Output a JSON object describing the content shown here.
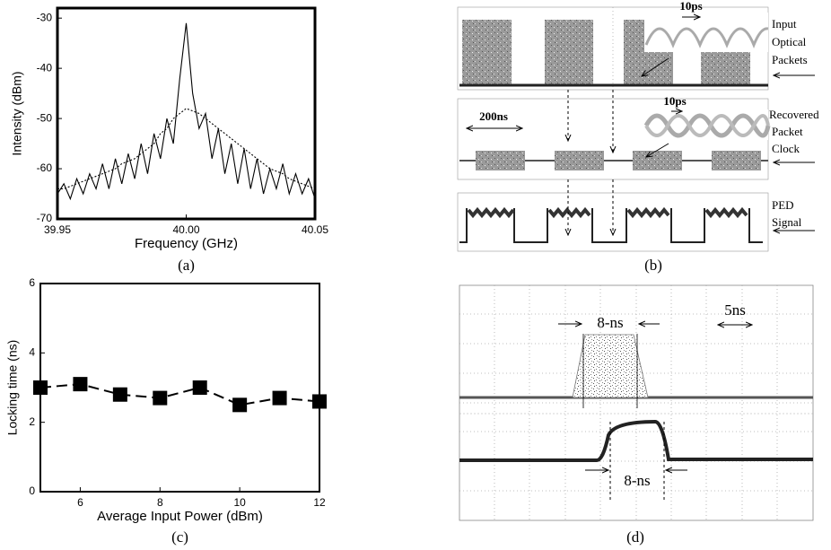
{
  "chart_data": [
    {
      "type": "line",
      "caption": "(a)",
      "xlabel": "Frequency (GHz)",
      "ylabel": "Intensity (dBm)",
      "x": [
        39.95,
        39.9525,
        39.955,
        39.9575,
        39.96,
        39.9625,
        39.965,
        39.9675,
        39.97,
        39.9725,
        39.975,
        39.9775,
        39.98,
        39.9825,
        39.985,
        39.9875,
        39.99,
        39.9925,
        39.995,
        39.9975,
        40.0,
        40.0025,
        40.005,
        40.0075,
        40.01,
        40.0125,
        40.015,
        40.0175,
        40.02,
        40.0225,
        40.025,
        40.0275,
        40.03,
        40.0325,
        40.035,
        40.0375,
        40.04,
        40.0425,
        40.045,
        40.0475,
        40.05
      ],
      "series": [
        {
          "color": "#000000",
          "dash": false,
          "values": [
            -65,
            -63,
            -66,
            -62,
            -65,
            -61,
            -64,
            -59,
            -64,
            -58,
            -63,
            -57,
            -62,
            -55,
            -61,
            -53,
            -58,
            -50,
            -55,
            -42,
            -31,
            -45,
            -52,
            -49,
            -58,
            -52,
            -61,
            -55,
            -63,
            -56,
            -64,
            -58,
            -65,
            -60,
            -64,
            -59,
            -65,
            -61,
            -65,
            -62,
            -66
          ]
        },
        {
          "color": "#000000",
          "dash": true,
          "values": [
            -64,
            -64,
            -63.5,
            -63,
            -62.5,
            -62,
            -61.5,
            -61,
            -60.5,
            -60,
            -59,
            -58.5,
            -58,
            -57,
            -56,
            -55,
            -53,
            -52,
            -50,
            -49,
            -48,
            -48.5,
            -49,
            -50,
            -51,
            -52,
            -53,
            -54,
            -55,
            -56,
            -57,
            -58,
            -59,
            -60,
            -60.5,
            -61,
            -62,
            -62.5,
            -63,
            -63.5,
            -64
          ]
        }
      ],
      "xlim": [
        39.95,
        40.05
      ],
      "ylim": [
        -70,
        -28
      ],
      "xticks": [
        {
          "value": 39.95,
          "label": "39.95"
        },
        {
          "value": 40.0,
          "label": "40.00"
        },
        {
          "value": 40.05,
          "label": "40.05"
        }
      ],
      "yticks": [
        -70,
        -60,
        -50,
        -40,
        -30
      ]
    },
    {
      "type": "oscilloscope",
      "caption": "(b)",
      "time_scales": [
        "10ps",
        "200ns",
        "10ps"
      ],
      "traces": [
        [
          "Input",
          "Optical",
          "Packets"
        ],
        [
          "Recovered",
          "Packet",
          "Clock"
        ],
        [
          "PED",
          "Signal"
        ]
      ]
    },
    {
      "type": "line",
      "caption": "(c)",
      "xlabel": "Average Input Power (dBm)",
      "ylabel": "Locking time (ns)",
      "x": [
        5,
        6,
        7,
        8,
        9,
        10,
        11,
        12
      ],
      "series": [
        {
          "color": "#000000",
          "dash": true,
          "marker": "square",
          "values": [
            3.0,
            3.1,
            2.8,
            2.7,
            3.0,
            2.5,
            2.7,
            2.6
          ]
        }
      ],
      "xlim": [
        5,
        12
      ],
      "ylim": [
        0,
        6
      ],
      "xticks": [
        6,
        8,
        10,
        12
      ],
      "yticks": [
        0,
        2,
        4,
        6
      ]
    },
    {
      "type": "oscilloscope",
      "caption": "(d)",
      "annotations": [
        "8-ns",
        "5ns",
        "8-ns"
      ]
    }
  ]
}
